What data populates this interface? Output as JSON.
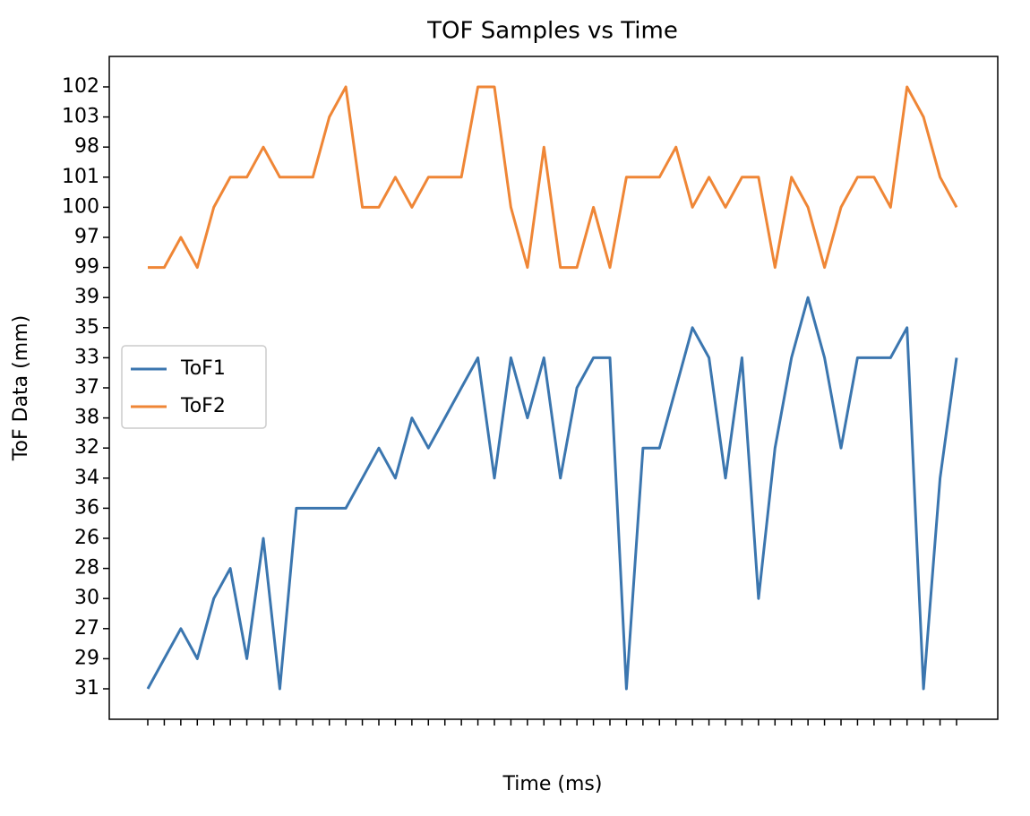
{
  "chart_data": {
    "type": "line",
    "title": "TOF Samples vs Time",
    "x_label": "Time (ms)",
    "y_label": "ToF Data (mm)",
    "categories": [
      null,
      null,
      null,
      null,
      null,
      null,
      null,
      null,
      null,
      null,
      null,
      null,
      null,
      null,
      null,
      null,
      null,
      null,
      null,
      null,
      null,
      null,
      null,
      null,
      null,
      null,
      null,
      null,
      null,
      null,
      null,
      null,
      null,
      null,
      null,
      null,
      null,
      null,
      null,
      null,
      null,
      null,
      null,
      null,
      null,
      null,
      null,
      null,
      null,
      null
    ],
    "ycategories": [
      31,
      29,
      27,
      30,
      28,
      26,
      36,
      34,
      32,
      38,
      37,
      33,
      35,
      39,
      99,
      97,
      100,
      101,
      98,
      103,
      102
    ],
    "series": [
      {
        "name": "ToF1",
        "color": "#3b76af",
        "values": [
          31,
          29,
          27,
          29,
          30,
          28,
          29,
          26,
          31,
          36,
          36,
          36,
          36,
          34,
          32,
          34,
          38,
          32,
          38,
          37,
          33,
          34,
          33,
          38,
          33,
          34,
          37,
          33,
          33,
          31,
          32,
          32,
          37,
          35,
          33,
          34,
          33,
          30,
          32,
          33,
          39,
          33,
          32,
          33,
          33,
          33,
          35,
          31,
          34,
          33
        ]
      },
      {
        "name": "ToF2",
        "color": "#ef8636",
        "values": [
          99,
          99,
          97,
          99,
          100,
          101,
          101,
          98,
          101,
          101,
          101,
          103,
          102,
          100,
          100,
          101,
          100,
          101,
          101,
          101,
          102,
          102,
          100,
          99,
          98,
          99,
          99,
          100,
          99,
          101,
          101,
          101,
          98,
          100,
          101,
          100,
          101,
          101,
          99,
          101,
          100,
          99,
          100,
          101,
          101,
          100,
          102,
          103,
          101,
          100
        ]
      }
    ],
    "legend": "center left"
  }
}
